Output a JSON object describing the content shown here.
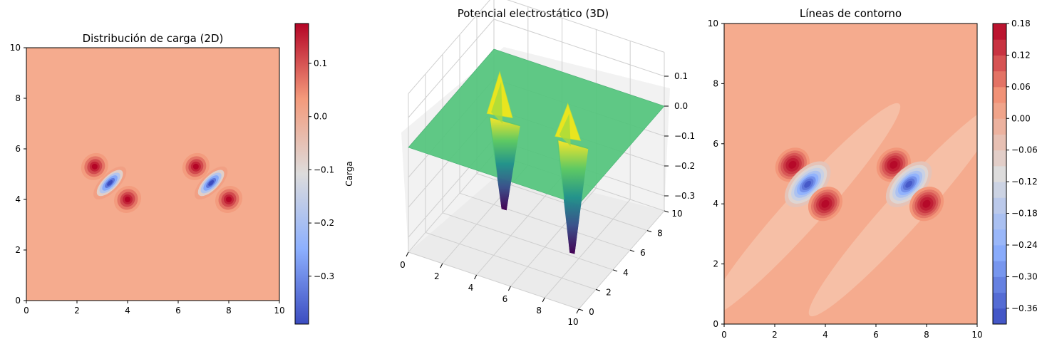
{
  "figure": {
    "panel1_title": "Distribución de carga (2D)",
    "panel2_title": "Potencial electrostático (3D)",
    "panel3_title": "Líneas de contorno",
    "colorbar1_label": "Carga"
  },
  "colors": {
    "background": "#ffffff",
    "surface_colormap": "viridis",
    "charge_colormap": "coolwarm"
  },
  "chart_data": [
    {
      "type": "heatmap",
      "title": "Distribución de carga (2D)",
      "xlim": [
        0,
        10
      ],
      "ylim": [
        0,
        10
      ],
      "xticks": [
        0,
        2,
        4,
        6,
        8,
        10
      ],
      "yticks": [
        0,
        2,
        4,
        6,
        8,
        10
      ],
      "colormap": "coolwarm",
      "value_range": [
        -0.39,
        0.175
      ],
      "background_value": 0.0,
      "colorbar": {
        "label": "Carga",
        "ticks": [
          0.1,
          0.0,
          -0.1,
          -0.2,
          -0.3
        ],
        "tick_labels": [
          "0.1",
          "0.0",
          "−0.1",
          "−0.2",
          "−0.3"
        ]
      },
      "features": [
        {
          "x": 2.7,
          "y": 5.3,
          "value": 0.175
        },
        {
          "x": 3.3,
          "y": 4.65,
          "value": -0.39
        },
        {
          "x": 4.0,
          "y": 4.0,
          "value": 0.175
        },
        {
          "x": 6.7,
          "y": 5.3,
          "value": 0.175
        },
        {
          "x": 7.3,
          "y": 4.65,
          "value": -0.39
        },
        {
          "x": 8.0,
          "y": 4.0,
          "value": 0.175
        }
      ]
    },
    {
      "type": "surface",
      "title": "Potencial electrostático (3D)",
      "xlim": [
        0,
        10
      ],
      "ylim": [
        0,
        10
      ],
      "zlim": [
        -0.35,
        0.15
      ],
      "xticks": [
        0,
        2,
        4,
        6,
        8,
        10
      ],
      "yticks": [
        0,
        2,
        4,
        6,
        8,
        10
      ],
      "zticks": [
        0.1,
        0.0,
        -0.1,
        -0.2,
        -0.3
      ],
      "ztick_labels": [
        "0.1",
        "0.0",
        "−0.1",
        "−0.2",
        "−0.3"
      ],
      "colormap": "viridis",
      "plane_value": 0.0,
      "peaks": [
        {
          "x": 2.7,
          "y": 5.3,
          "z": 0.13
        },
        {
          "x": 6.7,
          "y": 5.3,
          "z": 0.1
        }
      ],
      "troughs": [
        {
          "x": 3.3,
          "y": 4.65,
          "z": -0.3
        },
        {
          "x": 7.3,
          "y": 4.65,
          "z": -0.37
        }
      ]
    },
    {
      "type": "contour",
      "title": "Líneas de contorno",
      "xlim": [
        0,
        10
      ],
      "ylim": [
        0,
        10
      ],
      "xticks": [
        0,
        2,
        4,
        6,
        8,
        10
      ],
      "yticks": [
        0,
        2,
        4,
        6,
        8,
        10
      ],
      "colormap": "coolwarm",
      "levels": [
        -0.39,
        -0.36,
        -0.33,
        -0.3,
        -0.27,
        -0.24,
        -0.21,
        -0.18,
        -0.15,
        -0.12,
        -0.09,
        -0.06,
        -0.03,
        0.0,
        0.03,
        0.06,
        0.09,
        0.12,
        0.15,
        0.18
      ],
      "colorbar": {
        "ticks": [
          0.18,
          0.12,
          0.06,
          0.0,
          -0.06,
          -0.12,
          -0.18,
          -0.24,
          -0.3,
          -0.36
        ],
        "tick_labels": [
          "0.18",
          "0.12",
          "0.06",
          "0.00",
          "−0.06",
          "−0.12",
          "−0.18",
          "−0.24",
          "−0.30",
          "−0.36"
        ]
      },
      "features": [
        {
          "x": 2.7,
          "y": 5.3,
          "value": 0.175
        },
        {
          "x": 3.3,
          "y": 4.65,
          "value": -0.39
        },
        {
          "x": 4.0,
          "y": 4.0,
          "value": 0.175
        },
        {
          "x": 6.7,
          "y": 5.3,
          "value": 0.175
        },
        {
          "x": 7.3,
          "y": 4.65,
          "value": -0.39
        },
        {
          "x": 8.0,
          "y": 4.0,
          "value": 0.175
        }
      ]
    }
  ]
}
